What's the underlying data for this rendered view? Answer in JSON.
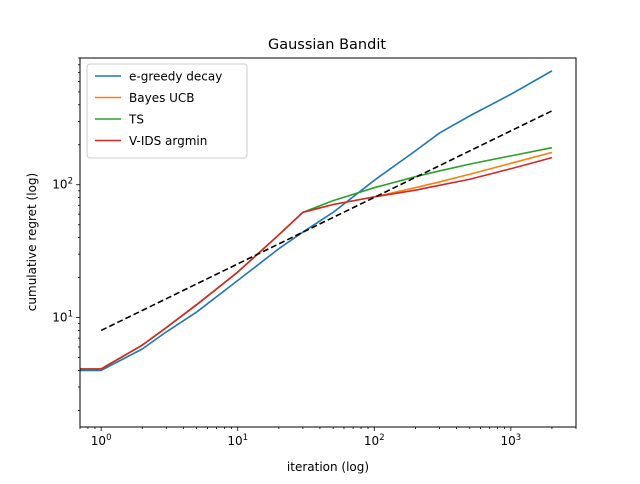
{
  "chart_data": {
    "type": "line",
    "title": "Gaussian Bandit",
    "xlabel": "iteration (log)",
    "ylabel": "cumulative regret (log)",
    "xscale": "log",
    "yscale": "log",
    "xlim": [
      0.7,
      3000
    ],
    "ylim": [
      1.5,
      900
    ],
    "xticks": [
      {
        "value": 1,
        "label": "10",
        "exp": "0"
      },
      {
        "value": 10,
        "label": "10",
        "exp": "1"
      },
      {
        "value": 100,
        "label": "10",
        "exp": "2"
      },
      {
        "value": 1000,
        "label": "10",
        "exp": "3"
      }
    ],
    "yticks": [
      {
        "value": 10,
        "label": "10",
        "exp": "1"
      },
      {
        "value": 100,
        "label": "10",
        "exp": "2"
      }
    ],
    "grid": false,
    "legend_position": "top-left",
    "series": [
      {
        "name": "e-greedy decay",
        "color": "#1f77b4",
        "style": "solid",
        "x": [
          0.7,
          1,
          2,
          3,
          5,
          10,
          20,
          30,
          50,
          100,
          200,
          300,
          500,
          1000,
          2000
        ],
        "y": [
          4.0,
          4.0,
          5.8,
          7.8,
          11,
          19,
          33,
          44,
          62,
          108,
          180,
          245,
          330,
          480,
          720
        ]
      },
      {
        "name": "Bayes UCB",
        "color": "#ff7f0e",
        "style": "solid",
        "x": [
          0.7,
          1,
          2,
          3,
          5,
          10,
          20,
          30,
          50,
          100,
          200,
          300,
          500,
          1000,
          2000
        ],
        "y": [
          4.1,
          4.1,
          6.2,
          8.4,
          12.5,
          22,
          42,
          62,
          71,
          81,
          95,
          105,
          120,
          145,
          175
        ]
      },
      {
        "name": "TS",
        "color": "#2ca02c",
        "style": "solid",
        "x": [
          0.7,
          1,
          2,
          3,
          5,
          10,
          20,
          30,
          50,
          100,
          200,
          300,
          500,
          1000,
          2000
        ],
        "y": [
          4.1,
          4.1,
          6.2,
          8.4,
          12.5,
          22,
          42,
          62,
          76,
          95,
          115,
          127,
          143,
          165,
          190
        ]
      },
      {
        "name": "V-IDS argmin",
        "color": "#d62728",
        "style": "solid",
        "x": [
          0.7,
          1,
          2,
          3,
          5,
          10,
          20,
          30,
          50,
          100,
          200,
          300,
          500,
          1000,
          2000
        ],
        "y": [
          4.1,
          4.1,
          6.2,
          8.4,
          12.5,
          22,
          42,
          62,
          71,
          81,
          91,
          99,
          110,
          132,
          160
        ]
      },
      {
        "name": "",
        "color": "#000000",
        "style": "dashed",
        "x": [
          1,
          2000
        ],
        "y": [
          8,
          360
        ]
      }
    ]
  }
}
